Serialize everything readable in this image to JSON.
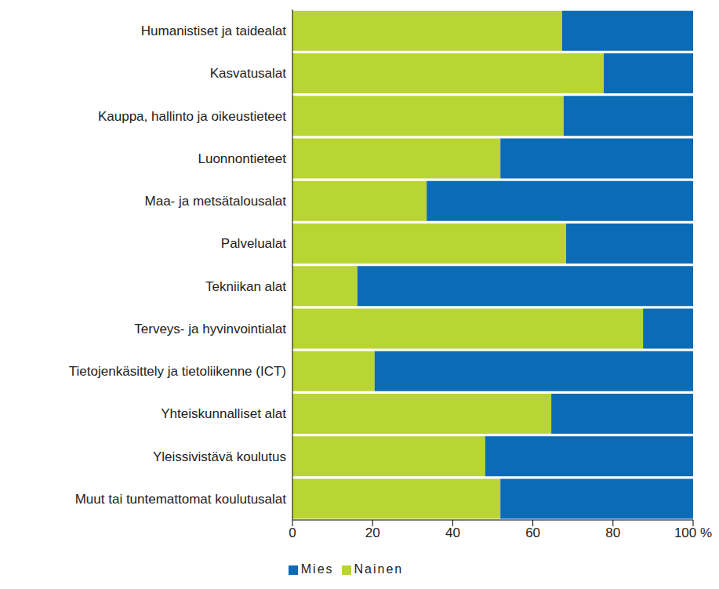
{
  "chart_data": {
    "type": "bar",
    "orientation": "horizontal",
    "stacked": true,
    "grid": false,
    "legend": "bottom",
    "categories": [
      "Humanistiset ja taidealat",
      "Kasvatusalat",
      "Kauppa, hallinto ja oikeustieteet",
      "Luonnontieteet",
      "Maa- ja metsätalousalat",
      "Palvelualat",
      "Tekniikan alat",
      "Terveys- ja hyvinvointialat",
      "Tietojenkäsittely ja tietoliikenne (ICT)",
      "Yhteiskunnalliset alat",
      "Yleissivistävä koulutus",
      "Muut tai tuntemattomat koulutusalat"
    ],
    "series": [
      {
        "name": "Nainen",
        "color": "#b9d531",
        "values": [
          67.3,
          77.7,
          67.7,
          51.9,
          33.5,
          68.3,
          16.2,
          87.5,
          20.5,
          64.6,
          48.1,
          51.9
        ]
      },
      {
        "name": "Mies",
        "color": "#0b6bb5",
        "values": [
          32.7,
          22.3,
          32.3,
          48.1,
          66.5,
          31.7,
          83.8,
          12.5,
          79.5,
          35.4,
          51.9,
          48.1
        ]
      }
    ],
    "xlim": [
      0,
      100
    ],
    "xticks": [
      0,
      20,
      40,
      60,
      80,
      {
        "value": 100,
        "label": "100 %"
      }
    ]
  }
}
